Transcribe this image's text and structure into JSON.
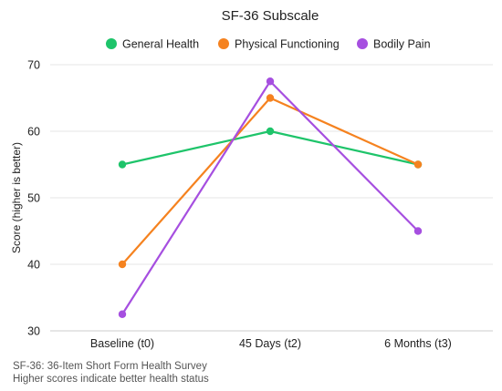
{
  "chart_data": {
    "type": "line",
    "title": "SF-36 Subscale",
    "xlabel": "",
    "ylabel": "Score (higher is better)",
    "categories": [
      "Baseline (t0)",
      "45 Days (t2)",
      "6 Months (t3)"
    ],
    "ylim": [
      30,
      70
    ],
    "yticks": [
      30,
      40,
      50,
      60,
      70
    ],
    "grid": true,
    "legend_position": "top",
    "series": [
      {
        "name": "General Health",
        "color": "#1ec46a",
        "values": [
          55,
          60,
          55
        ]
      },
      {
        "name": "Physical Functioning",
        "color": "#f5821f",
        "values": [
          40,
          65,
          55
        ]
      },
      {
        "name": "Bodily Pain",
        "color": "#a64fe0",
        "values": [
          32.5,
          67.5,
          45
        ]
      }
    ]
  },
  "footnotes": {
    "line1": "SF-36: 36-Item Short Form Health Survey",
    "line2": "Higher scores indicate better health status"
  }
}
